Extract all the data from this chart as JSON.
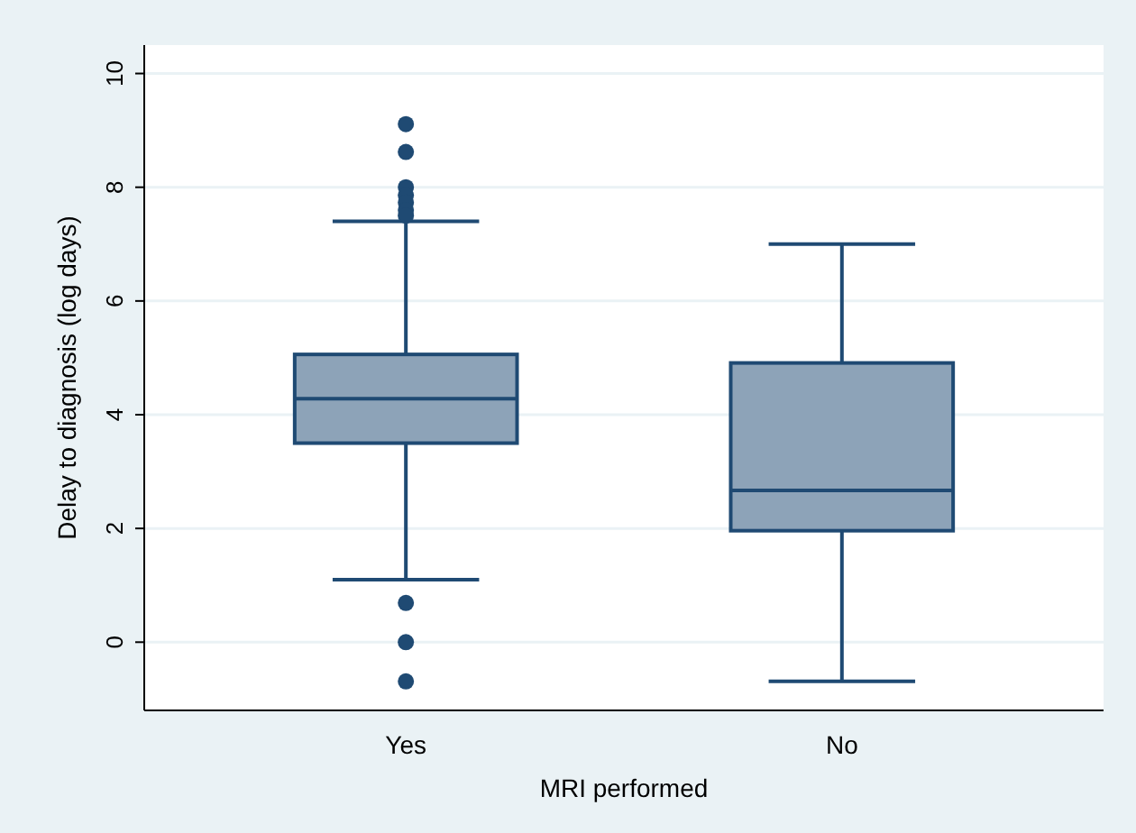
{
  "chart_data": {
    "type": "box",
    "xlabel": "MRI performed",
    "ylabel": "Delay to diagnosis (log days)",
    "categories": [
      "Yes",
      "No"
    ],
    "color": "#8da3b8",
    "ylim": [
      -1.2,
      10.5
    ],
    "yticks": [
      0,
      2,
      4,
      6,
      8,
      10
    ],
    "grid": "y",
    "boxes": [
      {
        "low": 1.1,
        "q1": 3.5,
        "median": 4.28,
        "q3": 5.06,
        "high": 7.4,
        "outliers": [
          9.11,
          8.62,
          8.0,
          7.86,
          7.73,
          7.6,
          7.5,
          0.69,
          0,
          -0.69
        ]
      },
      {
        "low": -0.69,
        "q1": 1.96,
        "median": 2.67,
        "q3": 4.91,
        "high": 7.0
      }
    ]
  }
}
